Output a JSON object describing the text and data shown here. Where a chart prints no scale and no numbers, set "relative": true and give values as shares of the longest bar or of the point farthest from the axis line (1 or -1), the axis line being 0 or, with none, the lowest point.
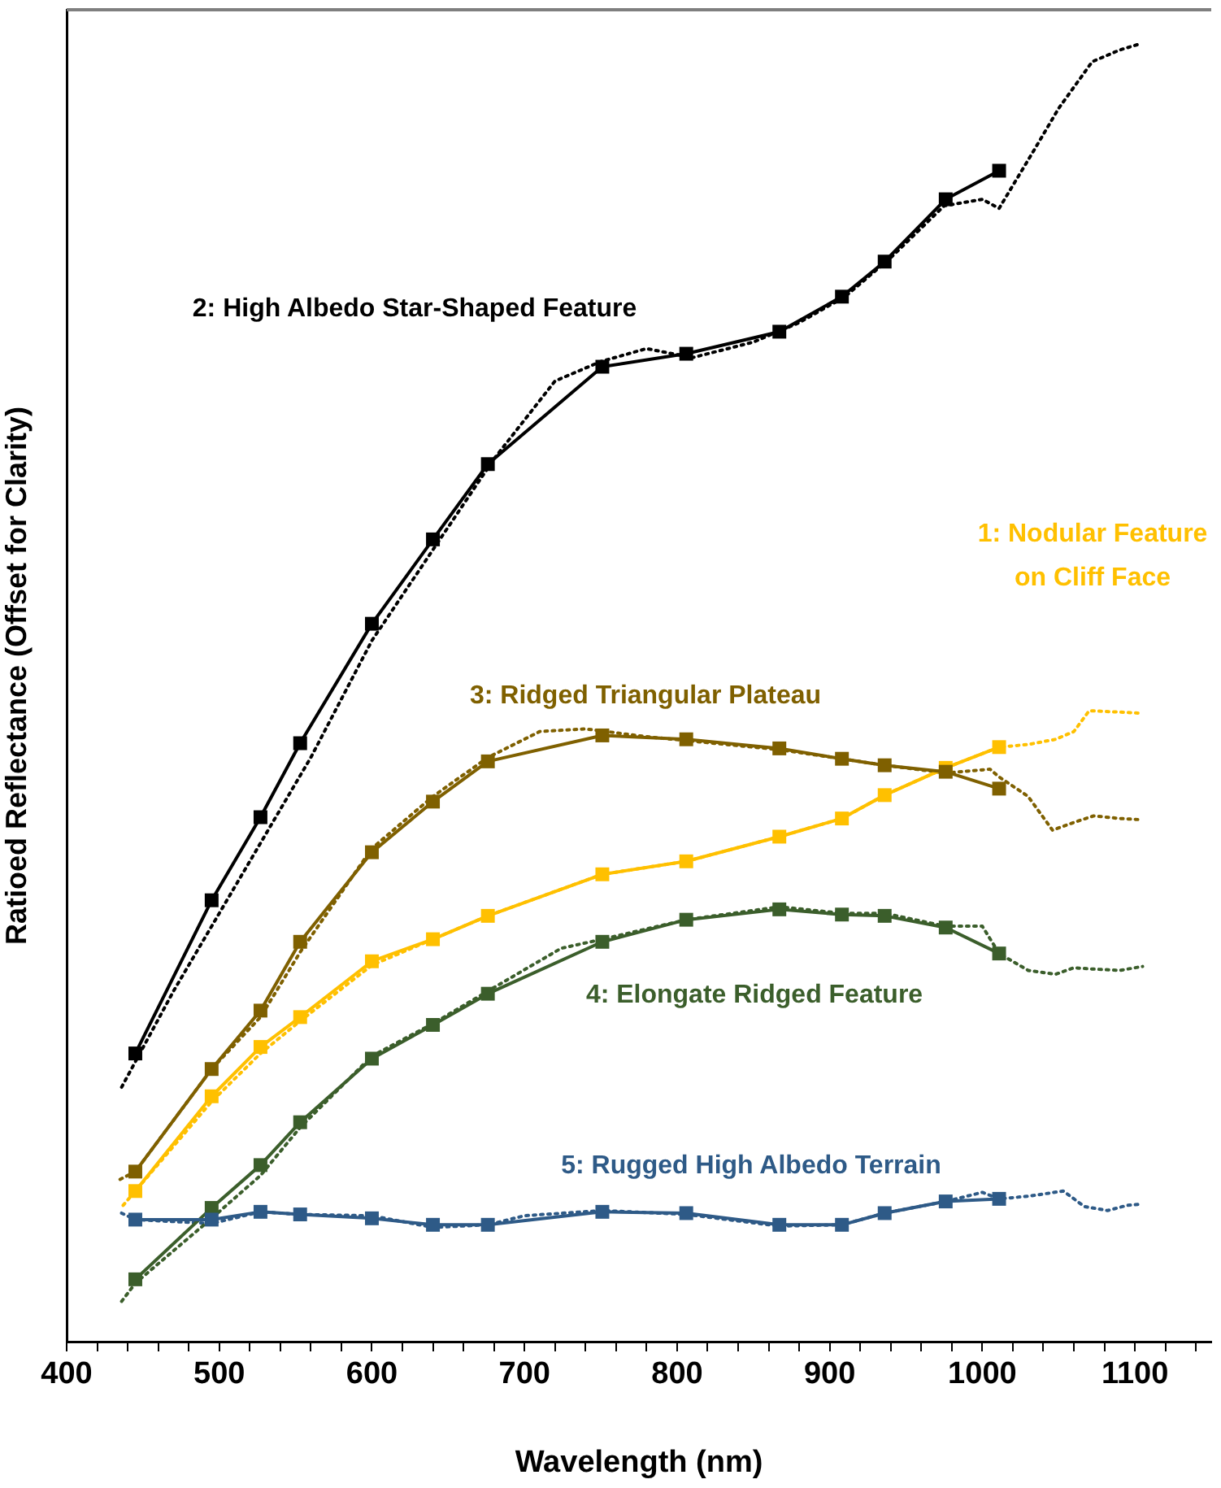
{
  "chart_data": {
    "type": "line",
    "relative": true,
    "xlabel": "Wavelength (nm)",
    "ylabel": "Ratioed Reflectance (Offset for Clarity)",
    "xlim": [
      400,
      1150
    ],
    "xticks": [
      400,
      {
        "value": 420,
        "label": null
      },
      {
        "value": 440,
        "label": null
      },
      {
        "value": 460,
        "label": null
      },
      {
        "value": 480,
        "label": null
      },
      500,
      {
        "value": 520,
        "label": null
      },
      {
        "value": 540,
        "label": null
      },
      {
        "value": 560,
        "label": null
      },
      {
        "value": 580,
        "label": null
      },
      600,
      {
        "value": 620,
        "label": null
      },
      {
        "value": 640,
        "label": null
      },
      {
        "value": 660,
        "label": null
      },
      {
        "value": 680,
        "label": null
      },
      700,
      {
        "value": 720,
        "label": null
      },
      {
        "value": 740,
        "label": null
      },
      {
        "value": 760,
        "label": null
      },
      {
        "value": 780,
        "label": null
      },
      800,
      {
        "value": 820,
        "label": null
      },
      {
        "value": 840,
        "label": null
      },
      {
        "value": 860,
        "label": null
      },
      {
        "value": 880,
        "label": null
      },
      900,
      {
        "value": 920,
        "label": null
      },
      {
        "value": 940,
        "label": null
      },
      {
        "value": 960,
        "label": null
      },
      {
        "value": 980,
        "label": null
      },
      1000,
      {
        "value": 1020,
        "label": null
      },
      {
        "value": 1040,
        "label": null
      },
      {
        "value": 1060,
        "label": null
      },
      {
        "value": 1080,
        "label": null
      },
      1100,
      {
        "value": 1120,
        "label": null
      },
      {
        "value": 1140,
        "label": null
      }
    ],
    "grid": false,
    "legend": false,
    "series": [
      {
        "name": "1: Nodular Feature on Cliff Face",
        "x": [
          445,
          495,
          527,
          553,
          600,
          640,
          676,
          751,
          806,
          867,
          908,
          936,
          976,
          1011
        ],
        "color": "#ffc000",
        "marker": "square",
        "line_style": "solid",
        "values": [
          0.116,
          0.189,
          0.227,
          0.25,
          0.293,
          0.31,
          0.328,
          0.36,
          0.37,
          0.389,
          0.403,
          0.421,
          0.442,
          0.458
        ]
      },
      {
        "name": "2: High Albedo Star-Shaped Feature",
        "x": [
          445,
          495,
          527,
          553,
          600,
          640,
          676,
          751,
          806,
          867,
          908,
          936,
          976,
          1011
        ],
        "color": "#000000",
        "marker": "square",
        "line_style": "solid",
        "values": [
          0.222,
          0.34,
          0.404,
          0.461,
          0.553,
          0.618,
          0.676,
          0.751,
          0.761,
          0.778,
          0.805,
          0.832,
          0.88,
          0.902
        ]
      },
      {
        "name": "3: Ridged Triangular Plateau",
        "x": [
          445,
          495,
          527,
          553,
          600,
          640,
          676,
          751,
          806,
          867,
          908,
          936,
          976,
          1011
        ],
        "color": "#7f6000",
        "marker": "square",
        "line_style": "solid",
        "values": [
          0.131,
          0.21,
          0.255,
          0.308,
          0.377,
          0.416,
          0.447,
          0.467,
          0.464,
          0.457,
          0.449,
          0.444,
          0.439,
          0.426
        ]
      },
      {
        "name": "4: Elongate Ridged Feature",
        "x": [
          445,
          495,
          527,
          553,
          600,
          640,
          676,
          751,
          806,
          867,
          908,
          936,
          976,
          1011
        ],
        "color": "#3b5e2b",
        "marker": "square",
        "line_style": "solid",
        "values": [
          0.048,
          0.103,
          0.136,
          0.169,
          0.218,
          0.244,
          0.268,
          0.308,
          0.325,
          0.333,
          0.329,
          0.328,
          0.319,
          0.299
        ]
      },
      {
        "name": "5: Rugged High Albedo Terrain",
        "x": [
          445,
          495,
          527,
          553,
          600,
          640,
          676,
          751,
          806,
          867,
          908,
          936,
          976,
          1011
        ],
        "color": "#2e5a87",
        "marker": "square",
        "line_style": "solid",
        "values": [
          0.094,
          0.094,
          0.1,
          0.098,
          0.095,
          0.09,
          0.09,
          0.1,
          0.099,
          0.09,
          0.09,
          0.099,
          0.108,
          0.11
        ]
      },
      {
        "x": [
          437,
          445,
          495,
          527,
          553,
          600,
          640,
          676,
          751,
          806,
          867,
          908,
          936,
          976,
          1011,
          1030,
          1048,
          1060,
          1070,
          1090,
          1105
        ],
        "color": "#ffc000",
        "marker": "none",
        "line_style": "dotted",
        "values": [
          0.105,
          0.116,
          0.185,
          0.222,
          0.247,
          0.29,
          0.31,
          0.328,
          0.36,
          0.37,
          0.389,
          0.403,
          0.421,
          0.442,
          0.458,
          0.46,
          0.464,
          0.47,
          0.486,
          0.485,
          0.484
        ]
      },
      {
        "x": [
          436,
          470,
          500,
          530,
          560,
          600,
          640,
          680,
          720,
          750,
          780,
          810,
          850,
          880,
          910,
          940,
          975,
          1000,
          1011,
          1035,
          1050,
          1072,
          1090,
          1104
        ],
        "color": "#000000",
        "marker": "none",
        "line_style": "dotted",
        "values": [
          0.196,
          0.27,
          0.33,
          0.39,
          0.45,
          0.54,
          0.61,
          0.68,
          0.74,
          0.755,
          0.765,
          0.758,
          0.77,
          0.785,
          0.805,
          0.835,
          0.875,
          0.88,
          0.873,
          0.92,
          0.95,
          0.986,
          0.995,
          1.0
        ]
      },
      {
        "x": [
          435,
          445,
          495,
          527,
          553,
          600,
          640,
          676,
          710,
          740,
          780,
          806,
          867,
          908,
          936,
          976,
          1005,
          1011,
          1030,
          1046,
          1060,
          1073,
          1090,
          1105
        ],
        "color": "#7f6000",
        "marker": "none",
        "line_style": "dotted",
        "values": [
          0.125,
          0.131,
          0.21,
          0.25,
          0.3,
          0.38,
          0.42,
          0.45,
          0.47,
          0.472,
          0.466,
          0.463,
          0.456,
          0.449,
          0.444,
          0.438,
          0.441,
          0.435,
          0.42,
          0.394,
          0.4,
          0.405,
          0.403,
          0.402
        ]
      },
      {
        "x": [
          436,
          445,
          495,
          527,
          553,
          600,
          640,
          676,
          724,
          751,
          806,
          867,
          908,
          936,
          976,
          1000,
          1011,
          1030,
          1048,
          1060,
          1073,
          1090,
          1105
        ],
        "color": "#3b5e2b",
        "marker": "none",
        "line_style": "dotted",
        "values": [
          0.031,
          0.045,
          0.095,
          0.128,
          0.165,
          0.22,
          0.245,
          0.27,
          0.303,
          0.31,
          0.325,
          0.335,
          0.33,
          0.33,
          0.32,
          0.32,
          0.299,
          0.286,
          0.283,
          0.288,
          0.287,
          0.286,
          0.289
        ]
      },
      {
        "x": [
          436,
          445,
          495,
          527,
          553,
          600,
          640,
          676,
          700,
          751,
          806,
          867,
          908,
          936,
          976,
          1000,
          1011,
          1030,
          1053,
          1067,
          1082,
          1095,
          1105
        ],
        "color": "#2e5a87",
        "marker": "none",
        "line_style": "dotted",
        "values": [
          0.099,
          0.094,
          0.091,
          0.1,
          0.098,
          0.097,
          0.088,
          0.09,
          0.097,
          0.101,
          0.098,
          0.089,
          0.09,
          0.099,
          0.108,
          0.115,
          0.11,
          0.112,
          0.116,
          0.104,
          0.101,
          0.105,
          0.106
        ]
      }
    ]
  }
}
